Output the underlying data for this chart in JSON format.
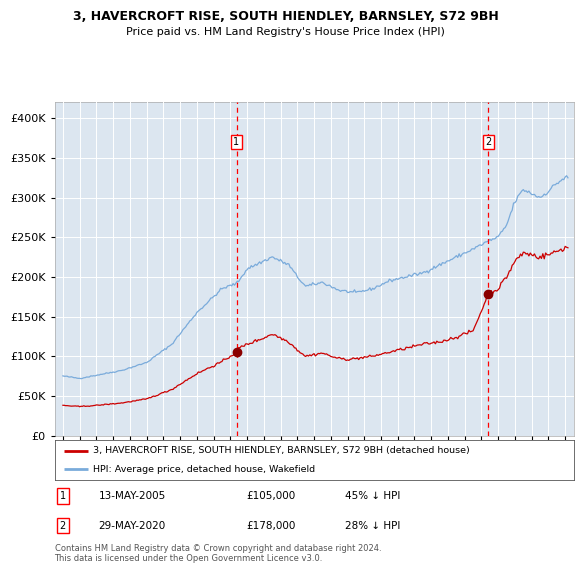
{
  "title": "3, HAVERCROFT RISE, SOUTH HIENDLEY, BARNSLEY, S72 9BH",
  "subtitle": "Price paid vs. HM Land Registry's House Price Index (HPI)",
  "background_color": "#ffffff",
  "plot_bg_color": "#dce6f0",
  "grid_color": "#ffffff",
  "hpi_color": "#7aabdb",
  "price_color": "#cc0000",
  "sale1_date": 2005.37,
  "sale1_price": 105000,
  "sale2_date": 2020.41,
  "sale2_price": 178000,
  "legend_entries": [
    "3, HAVERCROFT RISE, SOUTH HIENDLEY, BARNSLEY, S72 9BH (detached house)",
    "HPI: Average price, detached house, Wakefield"
  ],
  "footnote": "Contains HM Land Registry data © Crown copyright and database right 2024.\nThis data is licensed under the Open Government Licence v3.0.",
  "ylim": [
    0,
    420000
  ],
  "xlim_start": 1994.5,
  "xlim_end": 2025.5,
  "hpi_anchors_x": [
    1995.0,
    1996.0,
    1997.0,
    1998.5,
    2000.0,
    2001.5,
    2003.0,
    2004.5,
    2005.4,
    2006.0,
    2007.5,
    2008.5,
    2009.0,
    2009.5,
    2010.5,
    2011.5,
    2012.5,
    2013.5,
    2014.5,
    2015.5,
    2016.5,
    2017.5,
    2018.5,
    2019.5,
    2020.4,
    2021.0,
    2021.5,
    2022.0,
    2022.5,
    2023.0,
    2023.5,
    2024.0,
    2024.5,
    2025.0
  ],
  "hpi_anchors_y": [
    75000,
    72000,
    76000,
    82000,
    92000,
    115000,
    155000,
    185000,
    192000,
    210000,
    225000,
    215000,
    200000,
    188000,
    193000,
    183000,
    180000,
    185000,
    195000,
    200000,
    205000,
    215000,
    225000,
    235000,
    245000,
    250000,
    265000,
    295000,
    310000,
    305000,
    300000,
    308000,
    318000,
    325000
  ],
  "price_anchors_x": [
    1995.0,
    1996.0,
    1997.0,
    1998.5,
    2000.0,
    2001.5,
    2003.0,
    2004.5,
    2005.37,
    2005.5,
    2006.0,
    2007.0,
    2007.5,
    2008.5,
    2009.0,
    2009.5,
    2010.5,
    2011.0,
    2011.5,
    2012.0,
    2012.5,
    2013.5,
    2014.5,
    2015.5,
    2016.5,
    2017.5,
    2018.5,
    2019.0,
    2019.5,
    2020.41,
    2020.5,
    2021.0,
    2021.5,
    2022.0,
    2022.5,
    2023.0,
    2023.5,
    2024.0,
    2024.5,
    2025.0
  ],
  "price_anchors_y": [
    38000,
    36500,
    38000,
    41000,
    46000,
    58000,
    78000,
    93000,
    105000,
    110000,
    115000,
    123000,
    128000,
    118000,
    108000,
    100000,
    104000,
    100000,
    97000,
    96000,
    97000,
    100000,
    105000,
    110000,
    115000,
    118000,
    124000,
    128000,
    132000,
    178000,
    180000,
    185000,
    200000,
    220000,
    230000,
    228000,
    225000,
    228000,
    232000,
    237000
  ],
  "noise_seed": 42,
  "hpi_noise_scale": 0.005,
  "price_noise_scale": 0.008
}
